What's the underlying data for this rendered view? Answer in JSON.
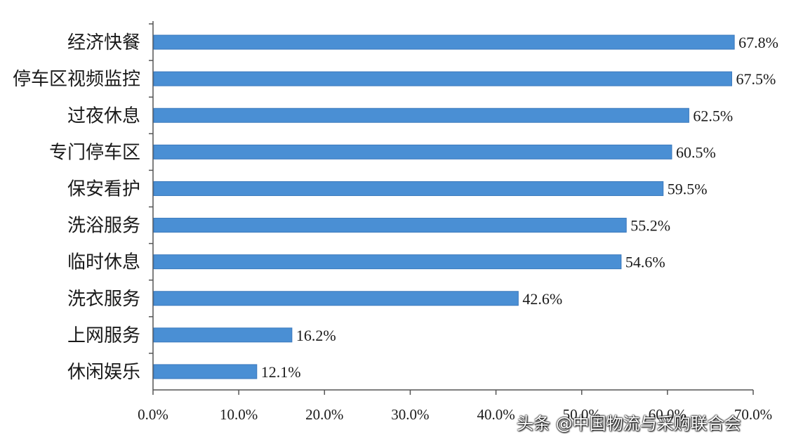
{
  "chart_data": {
    "type": "bar",
    "orientation": "horizontal",
    "categories": [
      "经济快餐",
      "停车区视频监控",
      "过夜休息",
      "专门停车区",
      "保安看护",
      "洗浴服务",
      "临时休息",
      "洗衣服务",
      "上网服务",
      "休闲娱乐"
    ],
    "values": [
      67.8,
      67.5,
      62.5,
      60.5,
      59.5,
      55.2,
      54.6,
      42.6,
      16.2,
      12.1
    ],
    "value_labels": [
      "67.8%",
      "67.5%",
      "62.5%",
      "60.5%",
      "59.5%",
      "55.2%",
      "54.6%",
      "42.6%",
      "16.2%",
      "12.1%"
    ],
    "xlim": [
      0,
      70
    ],
    "x_ticks": [
      0,
      10,
      20,
      30,
      40,
      50,
      60,
      70
    ],
    "x_tick_labels": [
      "0.0%",
      "10.0%",
      "20.0%",
      "30.0%",
      "40.0%",
      "50.0%",
      "60.0%",
      "70.0%"
    ],
    "grid": false,
    "colors": {
      "bar": "#4a8fd4"
    }
  },
  "watermark": "头条 @中国物流与采购联合会"
}
